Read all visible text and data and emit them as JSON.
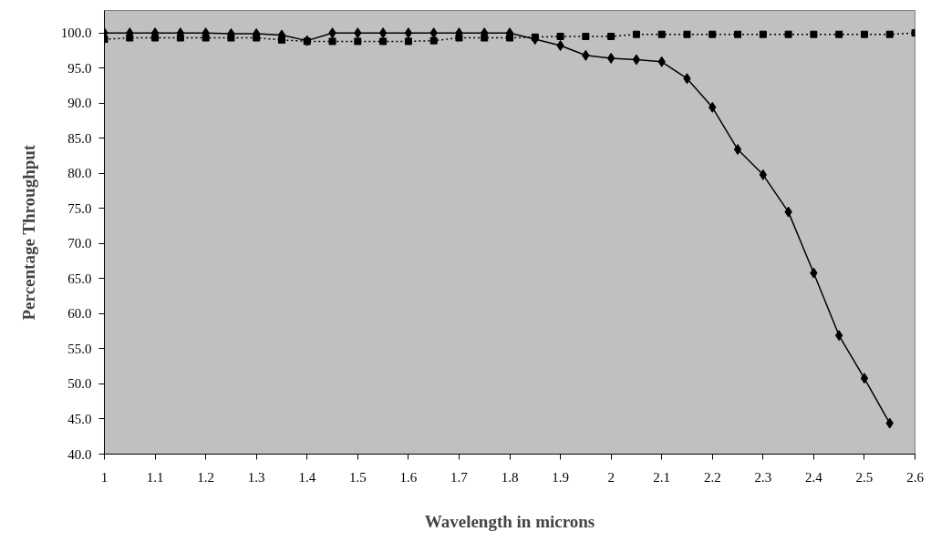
{
  "chart_data": {
    "type": "line",
    "xlabel": "Wavelength in microns",
    "ylabel": "Percentage Throughput",
    "x": [
      1.0,
      1.05,
      1.1,
      1.15,
      1.2,
      1.25,
      1.3,
      1.35,
      1.4,
      1.45,
      1.5,
      1.55,
      1.6,
      1.65,
      1.7,
      1.75,
      1.8,
      1.85,
      1.9,
      1.95,
      2.0,
      2.05,
      2.1,
      2.15,
      2.2,
      2.25,
      2.3,
      2.35,
      2.4,
      2.45,
      2.5,
      2.55,
      2.6
    ],
    "series": [
      {
        "color": "#000000",
        "marker": "diamond",
        "line_style": "solid",
        "values": [
          100.0,
          100.0,
          100.0,
          100.0,
          100.0,
          99.9,
          99.9,
          99.7,
          98.9,
          100.0,
          100.0,
          100.0,
          100.0,
          100.0,
          100.0,
          100.0,
          100.0,
          99.1,
          98.2,
          96.8,
          96.4,
          96.2,
          95.9,
          93.5,
          89.4,
          83.4,
          79.8,
          74.5,
          65.8,
          56.9,
          50.8,
          44.4,
          null
        ]
      },
      {
        "color": "#000000",
        "marker": "square",
        "line_style": "dotted",
        "values": [
          99.1,
          99.3,
          99.3,
          99.3,
          99.3,
          99.3,
          99.3,
          99.0,
          98.8,
          98.8,
          98.8,
          98.8,
          98.8,
          98.9,
          99.3,
          99.3,
          99.3,
          99.4,
          99.5,
          99.5,
          99.5,
          99.8,
          99.8,
          99.8,
          99.8,
          99.8,
          99.8,
          99.8,
          99.8,
          99.8,
          99.8,
          99.8,
          100.0
        ]
      }
    ],
    "xlim": [
      1,
      2.6
    ],
    "xticks": [
      1,
      1.1,
      1.2,
      1.3,
      1.4,
      1.5,
      1.6,
      1.7,
      1.8,
      1.9,
      2,
      2.1,
      2.2,
      2.3,
      2.4,
      2.5,
      2.6
    ],
    "ylim": [
      40,
      103.2
    ],
    "yticks": [
      {
        "value": 40,
        "label": "40.0"
      },
      {
        "value": 45,
        "label": "45.0"
      },
      {
        "value": 50,
        "label": "50.0"
      },
      {
        "value": 55,
        "label": "55.0"
      },
      {
        "value": 60,
        "label": "60.0"
      },
      {
        "value": 65,
        "label": "65.0"
      },
      {
        "value": 70,
        "label": "70.0"
      },
      {
        "value": 75,
        "label": "75.0"
      },
      {
        "value": 80,
        "label": "80.0"
      },
      {
        "value": 85,
        "label": "85.0"
      },
      {
        "value": 90,
        "label": "90.0"
      },
      {
        "value": 95,
        "label": "95.0"
      },
      {
        "value": 100,
        "label": "100.0"
      }
    ],
    "grid": false
  }
}
